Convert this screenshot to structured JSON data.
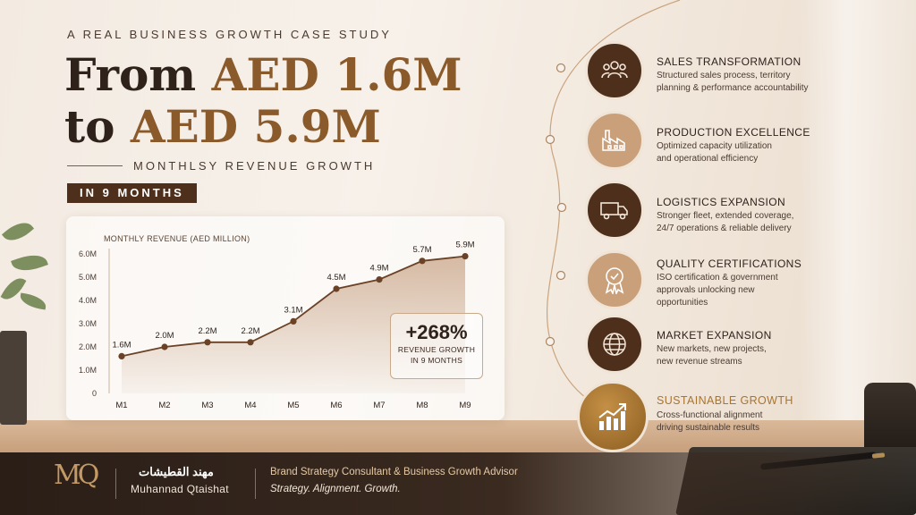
{
  "kicker": "A REAL BUSINESS GROWTH CASE STUDY",
  "headline": {
    "line1_prefix": "From ",
    "line1_accent": "AED 1.6M",
    "line2_prefix": "to ",
    "line2_accent": "AED 5.9M"
  },
  "subtitle": "MONTHLSY REVENUE GROWTH",
  "badge": "IN 9 MONTHS",
  "chart_data": {
    "type": "area",
    "title": "MONTHLY REVENUE (AED MILLION)",
    "categories": [
      "M1",
      "M2",
      "M3",
      "M4",
      "M5",
      "M6",
      "M7",
      "M8",
      "M9"
    ],
    "values": [
      1.6,
      2.0,
      2.2,
      2.2,
      3.1,
      4.5,
      4.9,
      5.7,
      5.9
    ],
    "data_labels": [
      "1.6M",
      "2.0M",
      "2.2M",
      "2.2M",
      "3.1M",
      "4.5M",
      "4.9M",
      "5.7M",
      "5.9M"
    ],
    "y_ticks": [
      0,
      1,
      2,
      3,
      4,
      5,
      6
    ],
    "y_tick_labels": [
      "0",
      "1.0M",
      "2.0M",
      "3.0M",
      "4.0M",
      "5.0M",
      "6.0M"
    ],
    "ylim": [
      0,
      6
    ],
    "grid": false,
    "line_color": "#6b4226",
    "fill_color": "#c9a588"
  },
  "growth": {
    "value": "+268%",
    "label_line1": "REVENUE GROWTH",
    "label_line2": "IN 9 MONTHS"
  },
  "steps": [
    {
      "title": "SALES TRANSFORMATION",
      "desc_line1": "Structured sales process, territory",
      "desc_line2": "planning & performance accountability",
      "desc_line3": "",
      "icon": "people-icon",
      "color": "#4d2f1c"
    },
    {
      "title": "PRODUCTION EXCELLENCE",
      "desc_line1": "Optimized capacity utilization",
      "desc_line2": "and operational efficiency",
      "desc_line3": "",
      "icon": "factory-icon",
      "color": "#c9a07a"
    },
    {
      "title": "LOGISTICS EXPANSION",
      "desc_line1": "Stronger fleet, extended coverage,",
      "desc_line2": "24/7 operations & reliable delivery",
      "desc_line3": "",
      "icon": "truck-icon",
      "color": "#4d2f1c"
    },
    {
      "title": "QUALITY CERTIFICATIONS",
      "desc_line1": "ISO certification & government",
      "desc_line2": "approvals unlocking new",
      "desc_line3": "opportunities",
      "icon": "medal-icon",
      "color": "#c9a07a"
    },
    {
      "title": "MARKET EXPANSION",
      "desc_line1": "New markets, new projects,",
      "desc_line2": "new revenue streams",
      "desc_line3": "",
      "icon": "globe-icon",
      "color": "#4d2f1c"
    },
    {
      "title": "SUSTAINABLE GROWTH",
      "desc_line1": "Cross-functional alignment",
      "desc_line2": "driving sustainable results",
      "desc_line3": "",
      "icon": "growth-chart-icon",
      "color": "#a9742f"
    }
  ],
  "footer": {
    "logo": "MQ",
    "name_ar": "مهند القطيشات",
    "name_en": "Muhannad Qtaishat",
    "role": "Brand Strategy Consultant & Business Growth Advisor",
    "tagline": "Strategy. Alignment. Growth."
  }
}
